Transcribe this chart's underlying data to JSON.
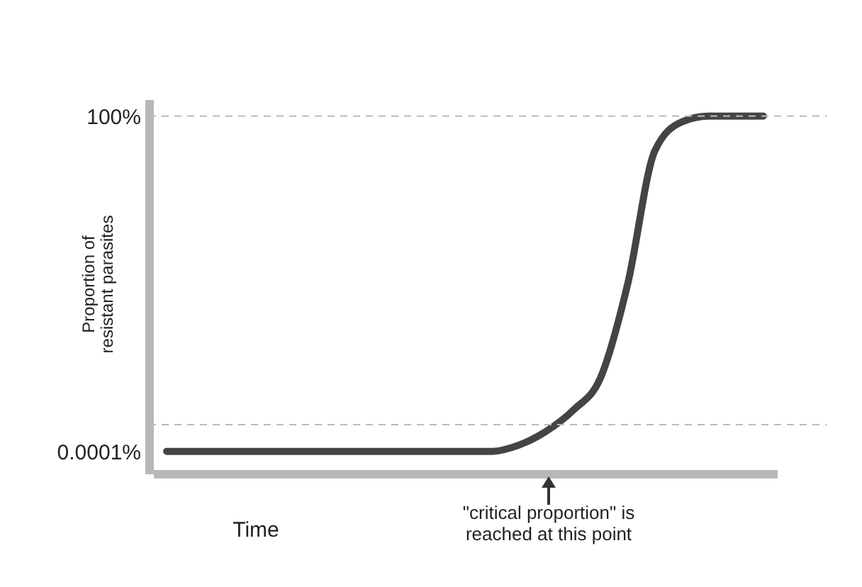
{
  "chart_data": {
    "type": "line",
    "xlabel": "Time",
    "ylabel": "Proportion of\nresistant parasites",
    "categories": [
      null,
      null,
      null,
      null,
      null,
      null,
      null,
      null,
      null,
      null,
      null,
      null,
      null,
      null,
      null,
      null,
      null,
      null,
      null,
      null,
      null,
      null,
      null
    ],
    "series": [
      {
        "color": "#444444",
        "values": [
          0.0001,
          0.0001,
          0.0001,
          0.0001,
          0.0001,
          0.0001,
          0.0001,
          0.0001,
          0.0001,
          0.0001,
          0.0001,
          0.0001,
          0.0001,
          0.00013,
          0.00023,
          0.00055,
          0.0021,
          0.1,
          24,
          79,
          100,
          100,
          100
        ]
      }
    ],
    "log": "y",
    "ylim": [
      4e-05,
      200
    ],
    "yticks": [
      {
        "value": 0.0001,
        "label": "0.0001%"
      },
      {
        "value": 100,
        "label": "100%"
      }
    ],
    "tick_labels": "y",
    "ref_lines": [
      {
        "axis": "y",
        "value": 100,
        "line_style": "dashed",
        "color": "#bbbbbb"
      },
      {
        "axis": "y",
        "value": 0.0003,
        "line_style": "dashed",
        "color": "#bbbbbb"
      }
    ],
    "annotations": [
      "\"critical proportion\" is\nreached at this point"
    ]
  }
}
